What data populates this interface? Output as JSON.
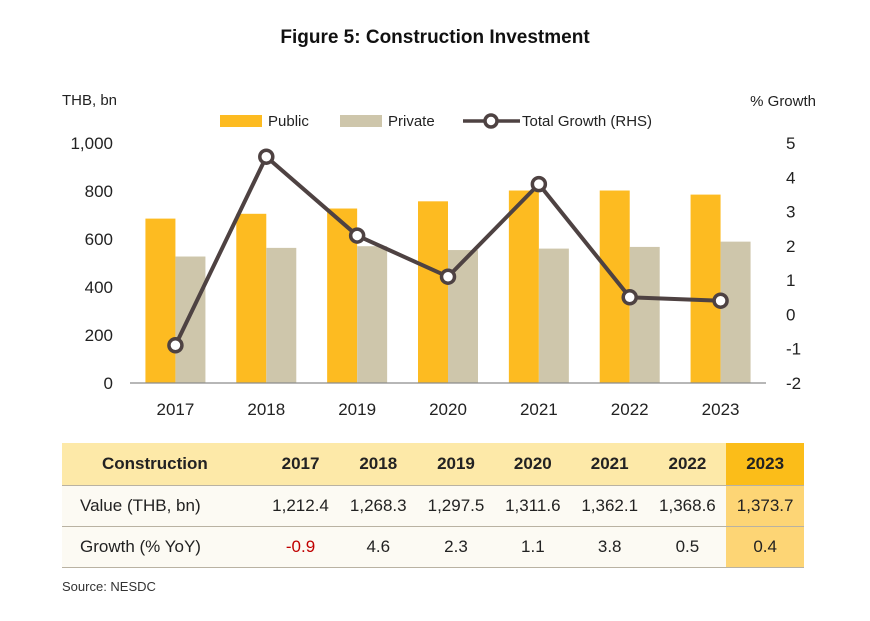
{
  "title": "Figure 5: Construction Investment",
  "colors": {
    "public": "#fdbb21",
    "private": "#cec6ab",
    "growth": "#4e4242",
    "highlight_header": "#fbbd19",
    "highlight_cell": "#fdd575",
    "negative": "#c00000"
  },
  "chart_data": {
    "type": "bar",
    "categories": [
      "2017",
      "2018",
      "2019",
      "2020",
      "2021",
      "2022",
      "2023"
    ],
    "series": [
      {
        "name": "Public",
        "type": "bar",
        "axis": "left",
        "values": [
          685,
          705,
          727,
          757,
          802,
          802,
          785
        ]
      },
      {
        "name": "Private",
        "type": "bar",
        "axis": "left",
        "values": [
          527,
          563,
          570,
          554,
          560,
          567,
          589
        ]
      },
      {
        "name": "Total Growth (RHS)",
        "type": "line",
        "axis": "right",
        "values": [
          -0.9,
          4.6,
          2.3,
          1.1,
          3.8,
          0.5,
          0.4
        ]
      }
    ],
    "ylabel_left": "THB, bn",
    "ylabel_right": "% Growth",
    "ylim_left": [
      0,
      1000
    ],
    "yticks_left": [
      "0",
      "200",
      "400",
      "600",
      "800",
      "1,000"
    ],
    "ylim_right": [
      -2,
      5
    ],
    "yticks_right": [
      "-2",
      "-1",
      "0",
      "1",
      "2",
      "3",
      "4",
      "5"
    ],
    "legend_position": "top-center",
    "grid": false
  },
  "table": {
    "header": [
      "Construction",
      "2017",
      "2018",
      "2019",
      "2020",
      "2021",
      "2022",
      "2023"
    ],
    "rows": [
      {
        "label": "Value (THB, bn)",
        "cells": [
          "1,212.4",
          "1,268.3",
          "1,297.5",
          "1,311.6",
          "1,362.1",
          "1,368.6",
          "1,373.7"
        ]
      },
      {
        "label": "Growth (% YoY)",
        "cells": [
          "-0.9",
          "4.6",
          "2.3",
          "1.1",
          "3.8",
          "0.5",
          "0.4"
        ]
      }
    ]
  },
  "source": "Source: NESDC"
}
